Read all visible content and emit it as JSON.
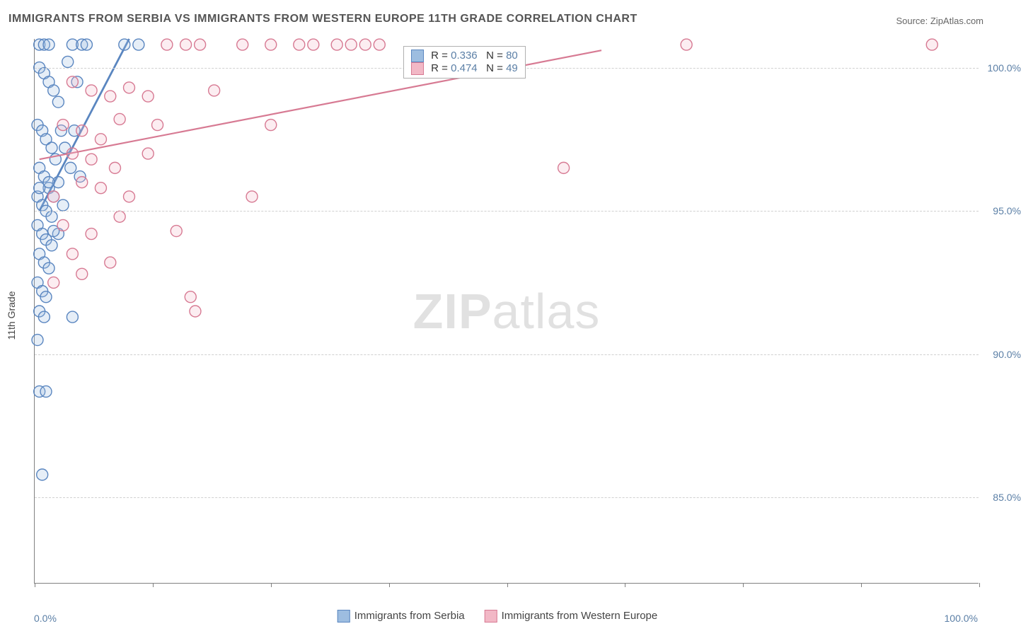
{
  "title": "IMMIGRANTS FROM SERBIA VS IMMIGRANTS FROM WESTERN EUROPE 11TH GRADE CORRELATION CHART",
  "source_label": "Source: ZipAtlas.com",
  "watermark_bold": "ZIP",
  "watermark_rest": "atlas",
  "y_axis_title": "11th Grade",
  "x_axis": {
    "min_label": "0.0%",
    "max_label": "100.0%",
    "min": 0,
    "max": 100,
    "ticks_at": [
      0,
      12.5,
      25,
      37.5,
      50,
      62.5,
      75,
      87.5,
      100
    ]
  },
  "y_axis": {
    "min": 82,
    "max": 101,
    "gridlines": [
      {
        "value": 85,
        "label": "85.0%"
      },
      {
        "value": 90,
        "label": "90.0%"
      },
      {
        "value": 95,
        "label": "95.0%"
      },
      {
        "value": 100,
        "label": "100.0%"
      }
    ]
  },
  "series": [
    {
      "id": "serbia",
      "name": "Immigrants from Serbia",
      "fill": "#9dbde0",
      "stroke": "#5a86c0",
      "r_value": "0.336",
      "n_value": "80",
      "trend": {
        "x1": 0.5,
        "y1": 95.0,
        "x2": 10.0,
        "y2": 101.0
      },
      "points": [
        [
          0.5,
          100.8
        ],
        [
          1.0,
          100.8
        ],
        [
          1.5,
          100.8
        ],
        [
          4.0,
          100.8
        ],
        [
          5.0,
          100.8
        ],
        [
          5.5,
          100.8
        ],
        [
          9.5,
          100.8
        ],
        [
          11.0,
          100.8
        ],
        [
          0.5,
          100.0
        ],
        [
          1.0,
          99.8
        ],
        [
          1.5,
          99.5
        ],
        [
          2.0,
          99.2
        ],
        [
          2.5,
          98.8
        ],
        [
          3.5,
          100.2
        ],
        [
          4.5,
          99.5
        ],
        [
          0.3,
          98.0
        ],
        [
          0.8,
          97.8
        ],
        [
          1.2,
          97.5
        ],
        [
          1.8,
          97.2
        ],
        [
          2.2,
          96.8
        ],
        [
          2.8,
          97.8
        ],
        [
          3.2,
          97.2
        ],
        [
          3.8,
          96.5
        ],
        [
          4.2,
          97.8
        ],
        [
          4.8,
          96.2
        ],
        [
          0.5,
          96.5
        ],
        [
          1.0,
          96.2
        ],
        [
          1.5,
          95.8
        ],
        [
          2.0,
          95.5
        ],
        [
          2.5,
          96.0
        ],
        [
          3.0,
          95.2
        ],
        [
          0.3,
          95.5
        ],
        [
          0.8,
          95.2
        ],
        [
          1.2,
          95.0
        ],
        [
          1.8,
          94.8
        ],
        [
          0.5,
          95.8
        ],
        [
          1.5,
          96.0
        ],
        [
          0.3,
          94.5
        ],
        [
          0.8,
          94.2
        ],
        [
          1.2,
          94.0
        ],
        [
          1.8,
          93.8
        ],
        [
          2.5,
          94.2
        ],
        [
          0.5,
          93.5
        ],
        [
          1.0,
          93.2
        ],
        [
          1.5,
          93.0
        ],
        [
          2.0,
          94.3
        ],
        [
          0.3,
          92.5
        ],
        [
          0.8,
          92.2
        ],
        [
          1.2,
          92.0
        ],
        [
          0.5,
          91.5
        ],
        [
          1.0,
          91.3
        ],
        [
          4.0,
          91.3
        ],
        [
          0.3,
          90.5
        ],
        [
          0.5,
          88.7
        ],
        [
          1.2,
          88.7
        ],
        [
          0.8,
          85.8
        ]
      ]
    },
    {
      "id": "weurope",
      "name": "Immigrants from Western Europe",
      "fill": "#f2b8c6",
      "stroke": "#d77a93",
      "r_value": "0.474",
      "n_value": "49",
      "trend": {
        "x1": 0.5,
        "y1": 96.8,
        "x2": 60.0,
        "y2": 100.6
      },
      "points": [
        [
          14.0,
          100.8
        ],
        [
          16.0,
          100.8
        ],
        [
          17.5,
          100.8
        ],
        [
          22.0,
          100.8
        ],
        [
          25.0,
          100.8
        ],
        [
          28.0,
          100.8
        ],
        [
          29.5,
          100.8
        ],
        [
          32.0,
          100.8
        ],
        [
          33.5,
          100.8
        ],
        [
          35.0,
          100.8
        ],
        [
          36.5,
          100.8
        ],
        [
          69.0,
          100.8
        ],
        [
          95.0,
          100.8
        ],
        [
          4.0,
          99.5
        ],
        [
          6.0,
          99.2
        ],
        [
          8.0,
          99.0
        ],
        [
          10.0,
          99.3
        ],
        [
          12.0,
          99.0
        ],
        [
          19.0,
          99.2
        ],
        [
          3.0,
          98.0
        ],
        [
          5.0,
          97.8
        ],
        [
          7.0,
          97.5
        ],
        [
          9.0,
          98.2
        ],
        [
          13.0,
          98.0
        ],
        [
          25.0,
          98.0
        ],
        [
          4.0,
          97.0
        ],
        [
          6.0,
          96.8
        ],
        [
          8.5,
          96.5
        ],
        [
          12.0,
          97.0
        ],
        [
          56.0,
          96.5
        ],
        [
          2.0,
          95.5
        ],
        [
          5.0,
          96.0
        ],
        [
          7.0,
          95.8
        ],
        [
          10.0,
          95.5
        ],
        [
          23.0,
          95.5
        ],
        [
          3.0,
          94.5
        ],
        [
          6.0,
          94.2
        ],
        [
          9.0,
          94.8
        ],
        [
          15.0,
          94.3
        ],
        [
          4.0,
          93.5
        ],
        [
          8.0,
          93.2
        ],
        [
          2.0,
          92.5
        ],
        [
          5.0,
          92.8
        ],
        [
          16.5,
          92.0
        ],
        [
          17.0,
          91.5
        ]
      ]
    }
  ],
  "bottom_legend": [
    {
      "swatch_fill": "#9dbde0",
      "swatch_stroke": "#5a86c0",
      "label": "Immigrants from Serbia"
    },
    {
      "swatch_fill": "#f2b8c6",
      "swatch_stroke": "#d77a93",
      "label": "Immigrants from Western Europe"
    }
  ],
  "colors": {
    "axis": "#808080",
    "grid": "#d0d0d0",
    "ylabel_text": "#5b7fa6"
  },
  "marker_radius": 8
}
